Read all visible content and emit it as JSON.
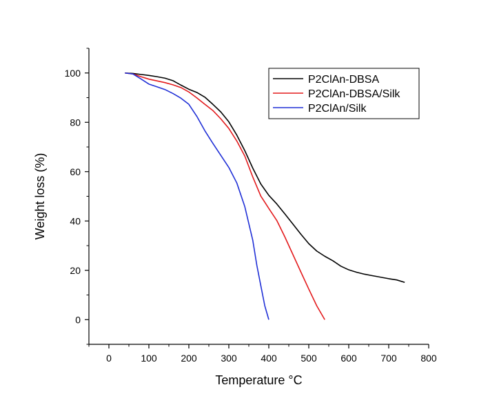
{
  "chart_data": {
    "type": "line",
    "title": "",
    "xlabel": "Temperature °C",
    "ylabel": "Weight loss (%)",
    "xlim": [
      -50,
      800
    ],
    "ylim": [
      -10,
      110
    ],
    "x_ticks": [
      0,
      100,
      200,
      300,
      400,
      500,
      600,
      700,
      800
    ],
    "y_ticks": [
      0,
      20,
      40,
      60,
      80,
      100
    ],
    "grid": false,
    "legend_position": "top-right",
    "series": [
      {
        "name": "P2ClAn-DBSA",
        "color": "#000000",
        "x": [
          40,
          60,
          80,
          100,
          120,
          140,
          160,
          180,
          200,
          220,
          240,
          260,
          280,
          300,
          320,
          340,
          360,
          380,
          400,
          420,
          440,
          460,
          480,
          500,
          520,
          540,
          560,
          580,
          600,
          620,
          640,
          660,
          680,
          700,
          720,
          740
        ],
        "y": [
          100,
          99.8,
          99.4,
          99,
          98.5,
          97.9,
          96.9,
          95.1,
          93.4,
          92.1,
          90.2,
          87.3,
          84.2,
          80.2,
          74.8,
          68.5,
          61.4,
          55,
          50.4,
          46.9,
          42.9,
          38.8,
          34.7,
          30.8,
          27.8,
          25.7,
          23.9,
          21.7,
          20.2,
          19.2,
          18.4,
          17.8,
          17.2,
          16.6,
          16.1,
          15.1
        ]
      },
      {
        "name": "P2ClAn-DBSA/Silk",
        "color": "#e31a1c",
        "x": [
          40,
          60,
          80,
          100,
          120,
          140,
          160,
          180,
          200,
          220,
          240,
          260,
          280,
          300,
          320,
          340,
          360,
          380,
          400,
          420,
          440,
          460,
          480,
          500,
          520,
          540
        ],
        "y": [
          100,
          99.6,
          98.5,
          97.5,
          96.8,
          96.1,
          95.2,
          94.1,
          92.3,
          89.9,
          87.3,
          84.8,
          81.4,
          77.5,
          72.4,
          66.3,
          57.8,
          50.1,
          45.1,
          40.2,
          33.6,
          26.5,
          19.4,
          12.4,
          5.6,
          0
        ]
      },
      {
        "name": "P2ClAn/Silk",
        "color": "#1f2fd6",
        "x": [
          40,
          60,
          80,
          100,
          120,
          140,
          160,
          180,
          200,
          220,
          240,
          260,
          280,
          300,
          320,
          340,
          360,
          370,
          380,
          390,
          400
        ],
        "y": [
          100,
          99.6,
          97.6,
          95.5,
          94.4,
          93.3,
          91.7,
          89.8,
          87.3,
          82.4,
          76.6,
          71.5,
          66.6,
          61.7,
          55.4,
          45.8,
          32.1,
          22.1,
          13.8,
          5.6,
          0
        ]
      }
    ]
  }
}
